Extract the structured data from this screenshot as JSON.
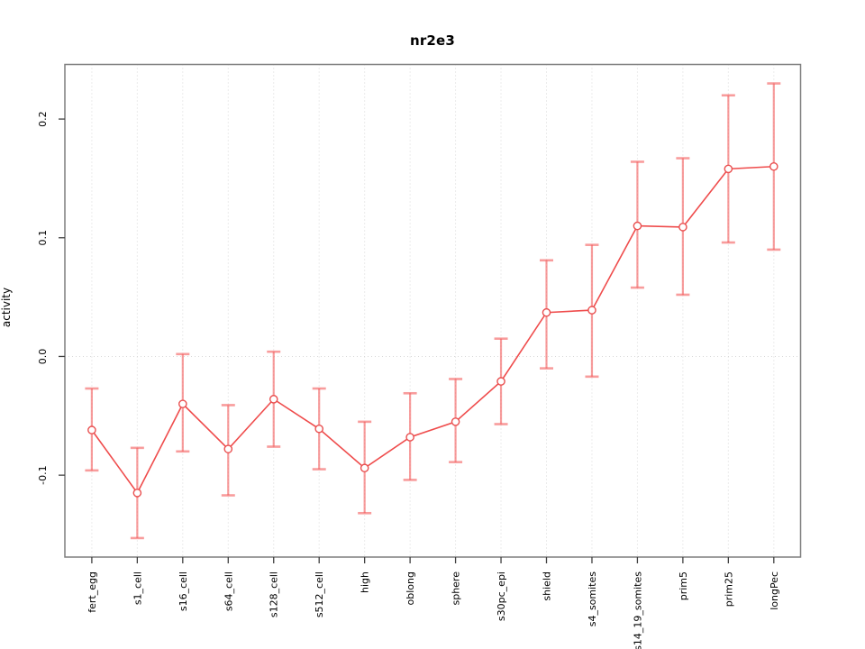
{
  "title": "nr2e3",
  "axes": {
    "y_label": "activity",
    "y_tick_labels": [
      "-0.1",
      "0.0",
      "0.1",
      "0.2"
    ]
  },
  "chart_data": {
    "type": "line",
    "title": "nr2e3",
    "xlabel": "",
    "ylabel": "activity",
    "categories": [
      "fert_egg",
      "s1_cell",
      "s16_cell",
      "s64_cell",
      "s128_cell",
      "s512_cell",
      "high",
      "oblong",
      "sphere",
      "s30pc_epi",
      "shield",
      "s4_somites",
      "s14_19_somites",
      "prim5",
      "prim25",
      "longPec"
    ],
    "series": [
      {
        "name": "activity",
        "marker": "open-circle",
        "values": [
          -0.062,
          -0.115,
          -0.04,
          -0.078,
          -0.036,
          -0.061,
          -0.094,
          -0.068,
          -0.055,
          -0.021,
          0.037,
          0.039,
          0.11,
          0.109,
          0.158,
          0.16
        ],
        "lower": [
          -0.096,
          -0.153,
          -0.08,
          -0.117,
          -0.076,
          -0.095,
          -0.132,
          -0.104,
          -0.089,
          -0.057,
          -0.01,
          -0.017,
          0.058,
          0.052,
          0.096,
          0.09
        ],
        "upper": [
          -0.027,
          -0.077,
          0.002,
          -0.041,
          0.004,
          -0.027,
          -0.055,
          -0.031,
          -0.019,
          0.015,
          0.081,
          0.094,
          0.164,
          0.167,
          0.22,
          0.23
        ]
      }
    ],
    "ylim": [
      -0.169,
      0.246
    ],
    "yticks": [
      -0.1,
      0.0,
      0.1,
      0.2
    ],
    "ytick_labels": [
      "-0.1",
      "0.0",
      "0.1",
      "0.2"
    ],
    "grid": "dotted vertical line at every category; dotted horizontal line at y=0",
    "legend_position": "none",
    "error_bars": true
  },
  "colors": {
    "line": "#ef4c4c",
    "marker_stroke": "#e94f4f",
    "error_bar": "rgba(244,96,96,0.62)",
    "grid": "#d9d9d9",
    "box_border": "#7f7f7f",
    "tick": "#404040",
    "text": "#000000",
    "background": "#ffffff"
  }
}
